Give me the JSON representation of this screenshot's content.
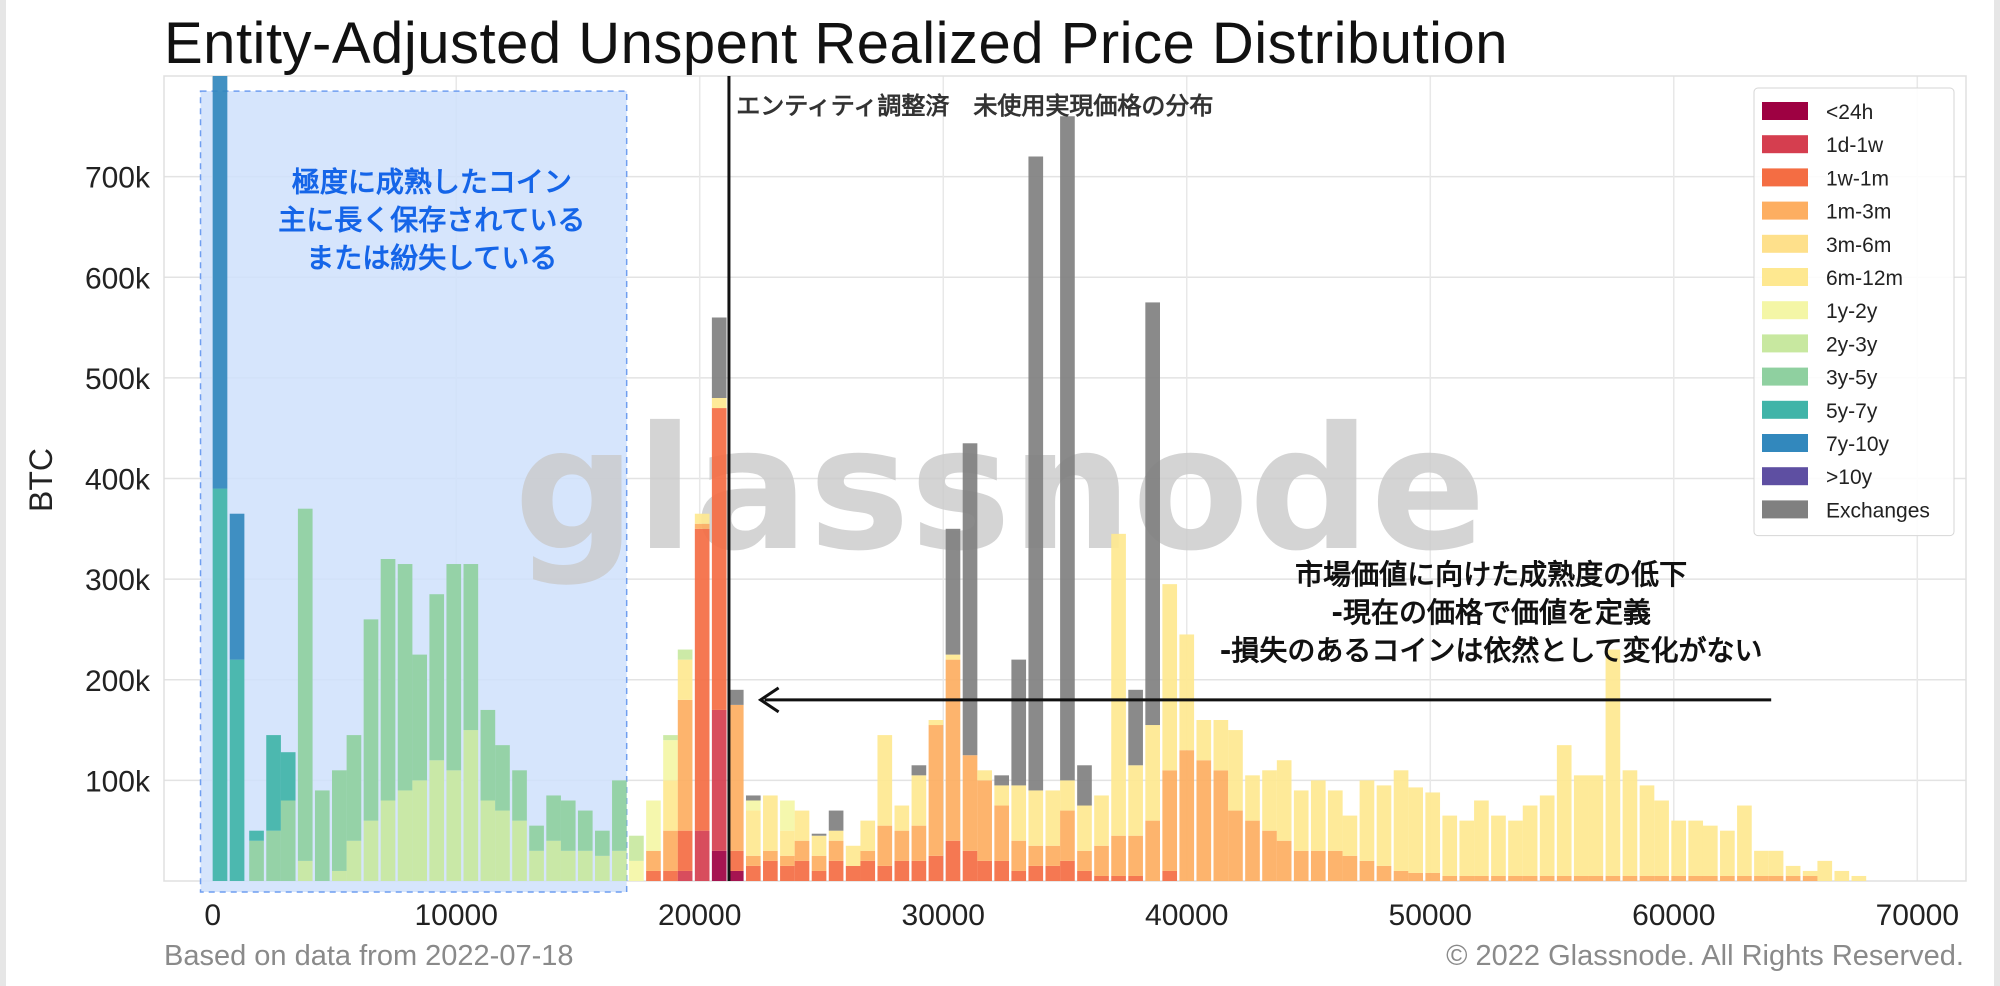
{
  "footer": {
    "left": "Based on data from 2022-07-18",
    "right": "© 2022 Glassnode. All Rights Reserved."
  },
  "watermark": "glassnode",
  "chart_data": {
    "type": "bar",
    "stacked": true,
    "title": "Entity-Adjusted Unspent Realized Price Distribution",
    "xlabel": "",
    "ylabel": "BTC",
    "xlim": [
      -2000,
      72000
    ],
    "ylim": [
      0,
      800000
    ],
    "bin_width": 700,
    "grid": true,
    "legend_position": "top-right",
    "x_ticks": [
      0,
      10000,
      20000,
      30000,
      40000,
      50000,
      60000,
      70000
    ],
    "x_tick_labels": [
      "0",
      "10000",
      "20000",
      "30000",
      "40000",
      "50000",
      "60000",
      "70000"
    ],
    "y_ticks": [
      100000,
      200000,
      300000,
      400000,
      500000,
      600000,
      700000
    ],
    "y_tick_labels": [
      "100k",
      "200k",
      "300k",
      "400k",
      "500k",
      "600k",
      "700k"
    ],
    "series": [
      {
        "name": "<24h",
        "color": "#9e0142"
      },
      {
        "name": "1d-1w",
        "color": "#d53e4f"
      },
      {
        "name": "1w-1m",
        "color": "#f46d43"
      },
      {
        "name": "1m-3m",
        "color": "#fdae61"
      },
      {
        "name": "3m-6m",
        "color": "#fee08b"
      },
      {
        "name": "6m-12m",
        "color": "#fee890"
      },
      {
        "name": "1y-2y",
        "color": "#f4f6a6"
      },
      {
        "name": "2y-3y",
        "color": "#c8e8a0"
      },
      {
        "name": "3y-5y",
        "color": "#8fd0a0"
      },
      {
        "name": "5y-7y",
        "color": "#40b4a8"
      },
      {
        "name": "7y-10y",
        "color": "#3288bd"
      },
      {
        "name": ">10y",
        "color": "#5e4fa2"
      },
      {
        "name": "Exchanges",
        "color": "#808080"
      }
    ],
    "bars": [
      {
        "x": 300,
        "stack": {
          "5y-7y": 390000,
          "7y-10y": 410000
        }
      },
      {
        "x": 1000,
        "stack": {
          "5y-7y": 220000,
          "7y-10y": 145000
        }
      },
      {
        "x": 1800,
        "stack": {
          "3y-5y": 40000,
          "5y-7y": 10000
        }
      },
      {
        "x": 2500,
        "stack": {
          "3y-5y": 50000,
          "5y-7y": 95000
        }
      },
      {
        "x": 3100,
        "stack": {
          "3y-5y": 80000,
          "5y-7y": 48000
        }
      },
      {
        "x": 3800,
        "stack": {
          "2y-3y": 20000,
          "3y-5y": 350000
        }
      },
      {
        "x": 4500,
        "stack": {
          "3y-5y": 90000
        }
      },
      {
        "x": 5200,
        "stack": {
          "2y-3y": 10000,
          "3y-5y": 100000
        }
      },
      {
        "x": 5800,
        "stack": {
          "2y-3y": 40000,
          "3y-5y": 105000
        }
      },
      {
        "x": 6500,
        "stack": {
          "2y-3y": 60000,
          "3y-5y": 200000
        }
      },
      {
        "x": 7200,
        "stack": {
          "2y-3y": 80000,
          "3y-5y": 240000
        }
      },
      {
        "x": 7900,
        "stack": {
          "2y-3y": 90000,
          "3y-5y": 225000
        }
      },
      {
        "x": 8500,
        "stack": {
          "2y-3y": 100000,
          "3y-5y": 125000
        }
      },
      {
        "x": 9200,
        "stack": {
          "2y-3y": 120000,
          "3y-5y": 165000
        }
      },
      {
        "x": 9900,
        "stack": {
          "2y-3y": 110000,
          "3y-5y": 205000
        }
      },
      {
        "x": 10600,
        "stack": {
          "2y-3y": 150000,
          "3y-5y": 165000
        }
      },
      {
        "x": 11300,
        "stack": {
          "2y-3y": 80000,
          "3y-5y": 90000
        }
      },
      {
        "x": 11900,
        "stack": {
          "2y-3y": 70000,
          "3y-5y": 65000
        }
      },
      {
        "x": 12600,
        "stack": {
          "2y-3y": 60000,
          "3y-5y": 50000
        }
      },
      {
        "x": 13300,
        "stack": {
          "2y-3y": 30000,
          "3y-5y": 25000
        }
      },
      {
        "x": 14000,
        "stack": {
          "2y-3y": 40000,
          "3y-5y": 45000
        }
      },
      {
        "x": 14600,
        "stack": {
          "2y-3y": 30000,
          "3y-5y": 50000
        }
      },
      {
        "x": 15300,
        "stack": {
          "2y-3y": 30000,
          "3y-5y": 40000
        }
      },
      {
        "x": 16000,
        "stack": {
          "2y-3y": 25000,
          "3y-5y": 25000
        }
      },
      {
        "x": 16700,
        "stack": {
          "2y-3y": 30000,
          "3y-5y": 70000
        }
      },
      {
        "x": 17400,
        "stack": {
          "1y-2y": 20000,
          "2y-3y": 25000
        }
      },
      {
        "x": 18100,
        "stack": {
          "1w-1m": 10000,
          "1m-3m": 20000,
          "1y-2y": 50000
        }
      },
      {
        "x": 18800,
        "stack": {
          "1w-1m": 10000,
          "1m-3m": 40000,
          "6m-12m": 50000,
          "1y-2y": 40000,
          "2y-3y": 5000
        }
      },
      {
        "x": 19400,
        "stack": {
          "1d-1w": 10000,
          "1w-1m": 40000,
          "1m-3m": 130000,
          "6m-12m": 40000,
          "2y-3y": 10000
        }
      },
      {
        "x": 20100,
        "stack": {
          "1d-1w": 50000,
          "1w-1m": 300000,
          "1m-3m": 5000,
          "6m-12m": 10000
        }
      },
      {
        "x": 20800,
        "stack": {
          "<24h": 30000,
          "1d-1w": 140000,
          "1w-1m": 300000,
          "6m-12m": 10000,
          "Exchanges": 80000
        }
      },
      {
        "x": 21500,
        "stack": {
          "<24h": 10000,
          "1w-1m": 20000,
          "1m-3m": 145000,
          "Exchanges": 15000
        }
      },
      {
        "x": 22200,
        "stack": {
          "1w-1m": 15000,
          "1m-3m": 10000,
          "6m-12m": 45000,
          "1y-2y": 10000,
          "Exchanges": 5000
        }
      },
      {
        "x": 22900,
        "stack": {
          "1w-1m": 20000,
          "1m-3m": 10000,
          "6m-12m": 55000
        }
      },
      {
        "x": 23600,
        "stack": {
          "1w-1m": 15000,
          "1m-3m": 10000,
          "6m-12m": 25000,
          "1y-2y": 30000
        }
      },
      {
        "x": 24200,
        "stack": {
          "1w-1m": 20000,
          "1m-3m": 20000,
          "6m-12m": 30000
        }
      },
      {
        "x": 24900,
        "stack": {
          "1w-1m": 10000,
          "1m-3m": 15000,
          "6m-12m": 20000,
          "Exchanges": 2000
        }
      },
      {
        "x": 25600,
        "stack": {
          "1w-1m": 20000,
          "1m-3m": 20000,
          "6m-12m": 10000,
          "Exchanges": 20000
        }
      },
      {
        "x": 26300,
        "stack": {
          "1w-1m": 15000,
          "6m-12m": 20000
        }
      },
      {
        "x": 26900,
        "stack": {
          "1w-1m": 20000,
          "1m-3m": 10000,
          "6m-12m": 30000
        }
      },
      {
        "x": 27600,
        "stack": {
          "1w-1m": 15000,
          "1m-3m": 40000,
          "6m-12m": 90000
        }
      },
      {
        "x": 28300,
        "stack": {
          "1w-1m": 20000,
          "1m-3m": 30000,
          "6m-12m": 25000
        }
      },
      {
        "x": 29000,
        "stack": {
          "1w-1m": 20000,
          "1m-3m": 35000,
          "6m-12m": 50000,
          "Exchanges": 10000
        }
      },
      {
        "x": 29700,
        "stack": {
          "1w-1m": 25000,
          "1m-3m": 130000,
          "6m-12m": 5000
        }
      },
      {
        "x": 30400,
        "stack": {
          "1w-1m": 40000,
          "1m-3m": 180000,
          "6m-12m": 5000,
          "Exchanges": 125000
        }
      },
      {
        "x": 31100,
        "stack": {
          "1w-1m": 30000,
          "1m-3m": 95000,
          "Exchanges": 310000
        }
      },
      {
        "x": 31700,
        "stack": {
          "1w-1m": 20000,
          "1m-3m": 80000,
          "6m-12m": 10000
        }
      },
      {
        "x": 32400,
        "stack": {
          "1w-1m": 20000,
          "1m-3m": 55000,
          "6m-12m": 20000,
          "Exchanges": 10000
        }
      },
      {
        "x": 33100,
        "stack": {
          "1w-1m": 10000,
          "1m-3m": 30000,
          "6m-12m": 55000,
          "Exchanges": 125000
        }
      },
      {
        "x": 33800,
        "stack": {
          "1w-1m": 15000,
          "1m-3m": 20000,
          "6m-12m": 55000,
          "Exchanges": 630000
        }
      },
      {
        "x": 34500,
        "stack": {
          "1w-1m": 15000,
          "1m-3m": 20000,
          "6m-12m": 55000
        }
      },
      {
        "x": 35100,
        "stack": {
          "1w-1m": 20000,
          "1m-3m": 50000,
          "6m-12m": 30000,
          "Exchanges": 660000
        }
      },
      {
        "x": 35800,
        "stack": {
          "1w-1m": 10000,
          "1m-3m": 20000,
          "6m-12m": 45000,
          "Exchanges": 40000
        }
      },
      {
        "x": 36500,
        "stack": {
          "1w-1m": 5000,
          "1m-3m": 30000,
          "6m-12m": 50000
        }
      },
      {
        "x": 37200,
        "stack": {
          "1w-1m": 5000,
          "1m-3m": 40000,
          "6m-12m": 300000
        }
      },
      {
        "x": 37900,
        "stack": {
          "1w-1m": 5000,
          "1m-3m": 40000,
          "6m-12m": 70000,
          "Exchanges": 75000
        }
      },
      {
        "x": 38600,
        "stack": {
          "1m-3m": 60000,
          "6m-12m": 95000,
          "Exchanges": 420000
        }
      },
      {
        "x": 39300,
        "stack": {
          "1w-1m": 10000,
          "1m-3m": 100000,
          "6m-12m": 185000
        }
      },
      {
        "x": 40000,
        "stack": {
          "1m-3m": 130000,
          "6m-12m": 115000
        }
      },
      {
        "x": 40700,
        "stack": {
          "1m-3m": 120000,
          "6m-12m": 40000
        }
      },
      {
        "x": 41400,
        "stack": {
          "1m-3m": 110000,
          "6m-12m": 50000
        }
      },
      {
        "x": 42000,
        "stack": {
          "1m-3m": 70000,
          "6m-12m": 80000
        }
      },
      {
        "x": 42700,
        "stack": {
          "1m-3m": 60000,
          "6m-12m": 45000
        }
      },
      {
        "x": 43400,
        "stack": {
          "1m-3m": 50000,
          "6m-12m": 60000
        }
      },
      {
        "x": 44000,
        "stack": {
          "1m-3m": 40000,
          "6m-12m": 80000
        }
      },
      {
        "x": 44700,
        "stack": {
          "1m-3m": 30000,
          "6m-12m": 60000
        }
      },
      {
        "x": 45400,
        "stack": {
          "1m-3m": 30000,
          "6m-12m": 70000
        }
      },
      {
        "x": 46100,
        "stack": {
          "1m-3m": 30000,
          "6m-12m": 60000
        }
      },
      {
        "x": 46700,
        "stack": {
          "1m-3m": 25000,
          "6m-12m": 40000
        }
      },
      {
        "x": 47400,
        "stack": {
          "1m-3m": 20000,
          "6m-12m": 80000
        }
      },
      {
        "x": 48100,
        "stack": {
          "1m-3m": 15000,
          "6m-12m": 80000
        }
      },
      {
        "x": 48800,
        "stack": {
          "1m-3m": 10000,
          "6m-12m": 100000
        }
      },
      {
        "x": 49400,
        "stack": {
          "1m-3m": 8000,
          "6m-12m": 85000
        }
      },
      {
        "x": 50100,
        "stack": {
          "1m-3m": 8000,
          "6m-12m": 80000
        }
      },
      {
        "x": 50800,
        "stack": {
          "1m-3m": 5000,
          "6m-12m": 60000
        }
      },
      {
        "x": 51500,
        "stack": {
          "1m-3m": 5000,
          "6m-12m": 55000
        }
      },
      {
        "x": 52100,
        "stack": {
          "1m-3m": 5000,
          "6m-12m": 75000
        }
      },
      {
        "x": 52800,
        "stack": {
          "1m-3m": 5000,
          "6m-12m": 60000
        }
      },
      {
        "x": 53500,
        "stack": {
          "1m-3m": 5000,
          "6m-12m": 55000
        }
      },
      {
        "x": 54100,
        "stack": {
          "1m-3m": 5000,
          "6m-12m": 70000
        }
      },
      {
        "x": 54800,
        "stack": {
          "1m-3m": 5000,
          "6m-12m": 80000
        }
      },
      {
        "x": 55500,
        "stack": {
          "1m-3m": 5000,
          "6m-12m": 130000
        }
      },
      {
        "x": 56200,
        "stack": {
          "1m-3m": 5000,
          "6m-12m": 100000
        }
      },
      {
        "x": 56800,
        "stack": {
          "1m-3m": 5000,
          "6m-12m": 100000
        }
      },
      {
        "x": 57500,
        "stack": {
          "1m-3m": 5000,
          "6m-12m": 225000
        }
      },
      {
        "x": 58200,
        "stack": {
          "1m-3m": 5000,
          "6m-12m": 105000
        }
      },
      {
        "x": 58900,
        "stack": {
          "1m-3m": 5000,
          "6m-12m": 90000
        }
      },
      {
        "x": 59500,
        "stack": {
          "1m-3m": 5000,
          "6m-12m": 75000
        }
      },
      {
        "x": 60200,
        "stack": {
          "1m-3m": 5000,
          "6m-12m": 55000
        }
      },
      {
        "x": 60900,
        "stack": {
          "1m-3m": 5000,
          "6m-12m": 55000
        }
      },
      {
        "x": 61500,
        "stack": {
          "1m-3m": 5000,
          "6m-12m": 50000
        }
      },
      {
        "x": 62200,
        "stack": {
          "1m-3m": 5000,
          "6m-12m": 45000
        }
      },
      {
        "x": 62900,
        "stack": {
          "1m-3m": 5000,
          "6m-12m": 70000
        }
      },
      {
        "x": 63600,
        "stack": {
          "1m-3m": 5000,
          "6m-12m": 25000
        }
      },
      {
        "x": 64200,
        "stack": {
          "1m-3m": 5000,
          "6m-12m": 25000
        }
      },
      {
        "x": 64900,
        "stack": {
          "1m-3m": 5000,
          "6m-12m": 10000
        }
      },
      {
        "x": 65600,
        "stack": {
          "1m-3m": 5000,
          "6m-12m": 5000
        }
      },
      {
        "x": 66200,
        "stack": {
          "6m-12m": 20000
        }
      },
      {
        "x": 66900,
        "stack": {
          "6m-12m": 10000
        }
      },
      {
        "x": 67600,
        "stack": {
          "6m-12m": 5000
        }
      }
    ],
    "vertical_line": {
      "x": 21200
    },
    "shaded_region": {
      "x_from": -500,
      "x_to": 17000
    },
    "annotations": [
      {
        "text": "エンティティ調整済　未使用実現価格の分布",
        "x": 21500,
        "y": 770000,
        "color": "#333333"
      },
      {
        "lines": [
          "極度に成熟したコイン",
          "主に長く保存されている",
          "または紛失している"
        ],
        "x": 9000,
        "y": 685000,
        "color": "#1565e8"
      },
      {
        "lines": [
          "市場価値に向けた成熟度の低下",
          "-現在の価格で価値を定義",
          "-損失のあるコインは依然として変化がない"
        ],
        "x": 52500,
        "y": 295000,
        "color": "#111111"
      }
    ],
    "arrow": {
      "x_from": 64000,
      "x_to": 22500,
      "y": 180000
    }
  }
}
